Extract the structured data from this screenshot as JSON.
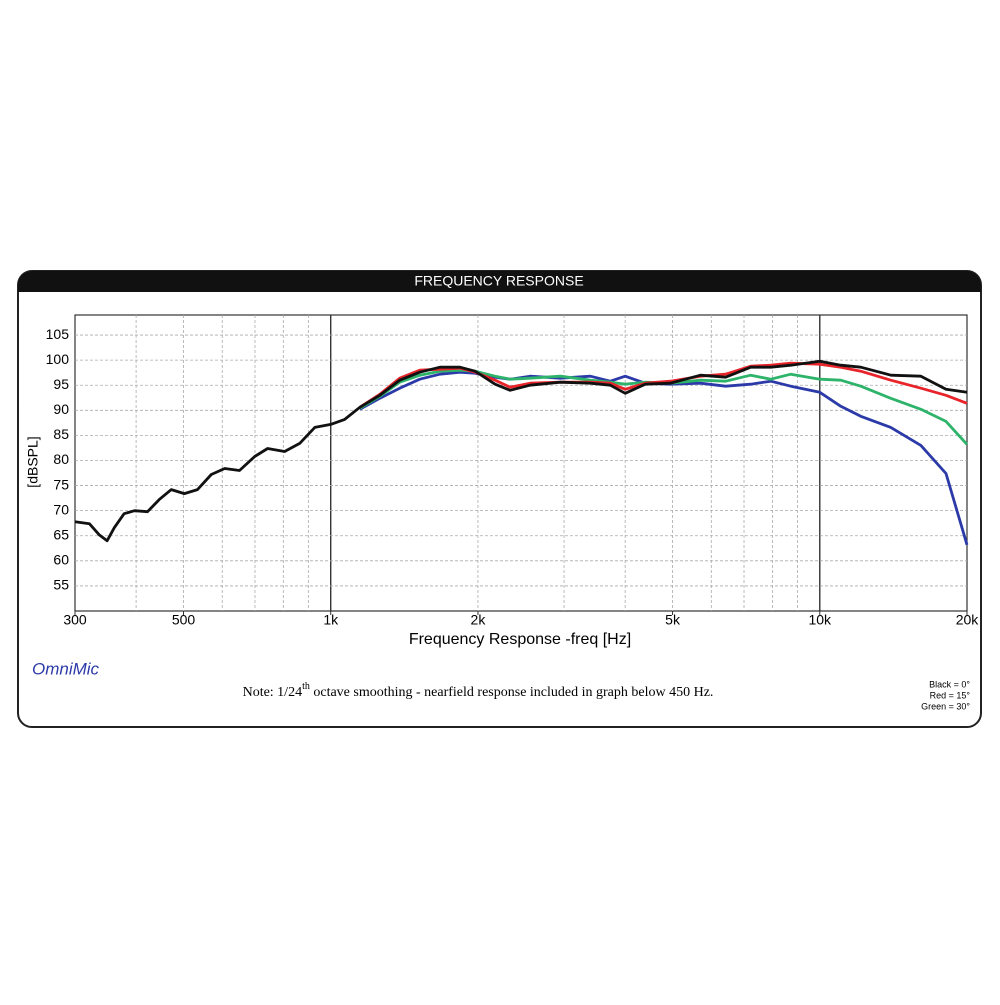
{
  "chart_data": {
    "type": "line",
    "title": "FREQUENCY RESPONSE",
    "x_label": "Frequency Response -freq [Hz]",
    "y_label": "[dBSPL]",
    "brand": "OmniMic",
    "note": {
      "prefix": "Note:  1/24",
      "sup": "th",
      "rest": " octave smoothing - nearfield response included in graph below 450 Hz."
    },
    "log_x": true,
    "grid": true,
    "xlim": [
      300,
      20000
    ],
    "xticks": [
      300,
      500,
      {
        "value": 1000,
        "label": "1k"
      },
      {
        "value": 2000,
        "label": "2k"
      },
      {
        "value": 5000,
        "label": "5k"
      },
      {
        "value": 10000,
        "label": "10k"
      },
      {
        "value": 20000,
        "label": "20k"
      }
    ],
    "ylim": [
      50,
      109
    ],
    "yticks": [
      55,
      60,
      65,
      70,
      75,
      80,
      85,
      90,
      95,
      100,
      105
    ],
    "legend_position": "bottom-right",
    "x": [
      300,
      321,
      336,
      349,
      361,
      378,
      397,
      422,
      446,
      472,
      502,
      534,
      570,
      607,
      651,
      699,
      743,
      805,
      864,
      928,
      1000,
      1068,
      1147,
      1260,
      1384,
      1521,
      1672,
      1838,
      1973,
      2168,
      2327,
      2557,
      2947,
      3396,
      3730,
      4000,
      4397,
      4950,
      5703,
      6417,
      7222,
      7940,
      8726,
      10000,
      11040,
      12130,
      13970,
      16100,
      18120,
      20000
    ],
    "series": [
      {
        "color": "#2b3aa8",
        "values": [
          null,
          null,
          null,
          null,
          null,
          null,
          null,
          null,
          null,
          null,
          null,
          null,
          null,
          null,
          null,
          null,
          null,
          null,
          null,
          null,
          null,
          null,
          90.2,
          92.4,
          94.4,
          96.2,
          97.2,
          97.6,
          97.4,
          96.6,
          96.2,
          96.8,
          96.4,
          96.8,
          95.8,
          96.8,
          95.4,
          95.2,
          95.4,
          94.8,
          95.2,
          95.8,
          94.8,
          93.6,
          90.8,
          88.8,
          86.6,
          83,
          77.4,
          63.2
        ]
      },
      {
        "name": "Green = 30°",
        "color": "#2db36a",
        "values": [
          null,
          null,
          null,
          null,
          null,
          null,
          null,
          null,
          null,
          null,
          null,
          null,
          null,
          null,
          null,
          null,
          null,
          null,
          null,
          null,
          null,
          null,
          90.4,
          92.8,
          95.6,
          97,
          97.8,
          98,
          97.8,
          96.8,
          96.2,
          96.4,
          96.8,
          96,
          95.6,
          95.2,
          95.6,
          95.4,
          96,
          95.8,
          97,
          96.2,
          97.2,
          96.2,
          96,
          94.8,
          92.4,
          90.2,
          87.8,
          83.2
        ]
      },
      {
        "name": "Red = 15°",
        "color": "#e8242a",
        "values": [
          null,
          null,
          null,
          null,
          null,
          null,
          null,
          null,
          null,
          null,
          null,
          null,
          null,
          null,
          null,
          null,
          null,
          null,
          null,
          null,
          null,
          null,
          90.6,
          93.2,
          96.4,
          98,
          98.2,
          98.4,
          97.6,
          96,
          94.6,
          95.4,
          95.6,
          95.6,
          95.4,
          94.2,
          95.4,
          95.8,
          96.8,
          97.2,
          98.8,
          99,
          99.4,
          99.2,
          98.6,
          97.8,
          96,
          94.4,
          93,
          91.4
        ]
      },
      {
        "name": "Black = 0°",
        "color": "#111111",
        "values": [
          67.8,
          67.4,
          65.2,
          64,
          66.6,
          69.4,
          70,
          69.8,
          72.2,
          74.2,
          73.4,
          74.2,
          77.2,
          78.4,
          78,
          80.8,
          82.4,
          81.8,
          83.4,
          86.6,
          87.2,
          88.2,
          90.6,
          93,
          96,
          97.6,
          98.6,
          98.6,
          97.8,
          95.2,
          94,
          95,
          95.6,
          95.4,
          95,
          93.4,
          95.2,
          95.4,
          97,
          96.6,
          98.6,
          98.6,
          99,
          99.8,
          99,
          98.6,
          97,
          96.8,
          94.2,
          93.6
        ]
      }
    ]
  }
}
